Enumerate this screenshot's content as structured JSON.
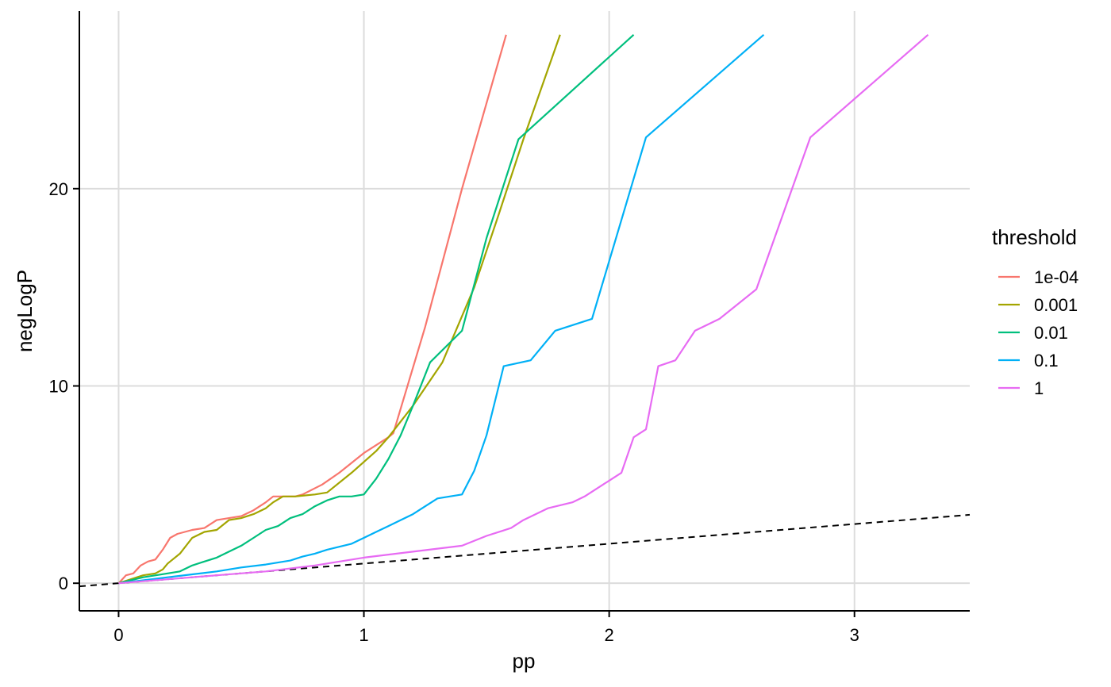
{
  "chart_data": {
    "type": "line",
    "title": "",
    "xlabel": "pp",
    "ylabel": "negLogP",
    "xlim": [
      -0.16,
      3.47
    ],
    "ylim": [
      -1.4,
      29.0
    ],
    "x_ticks": [
      0,
      1,
      2,
      3
    ],
    "y_ticks": [
      0,
      10,
      20
    ],
    "x_tick_labels": [
      "0",
      "1",
      "2",
      "3"
    ],
    "y_tick_labels": [
      "0",
      "10",
      "20"
    ],
    "grid": true,
    "legend": {
      "title": "threshold",
      "position": "right",
      "entries": [
        "1e-04",
        "0.001",
        "0.01",
        "0.1",
        "1"
      ]
    },
    "reference_line": {
      "style": "dashed",
      "color": "#000000",
      "x": [
        -0.16,
        3.47
      ],
      "y": [
        -0.16,
        3.47
      ]
    },
    "series": [
      {
        "name": "1e-04",
        "color": "#F8766D",
        "x": [
          0.0,
          0.03,
          0.06,
          0.09,
          0.12,
          0.15,
          0.18,
          0.21,
          0.24,
          0.27,
          0.3,
          0.35,
          0.4,
          0.45,
          0.5,
          0.55,
          0.6,
          0.63,
          0.67,
          0.72,
          0.75,
          0.83,
          0.9,
          1.0,
          1.1,
          1.12,
          1.25,
          1.4,
          1.58
        ],
        "y": [
          0.0,
          0.4,
          0.5,
          0.9,
          1.1,
          1.2,
          1.7,
          2.3,
          2.5,
          2.6,
          2.7,
          2.8,
          3.2,
          3.3,
          3.4,
          3.7,
          4.1,
          4.4,
          4.4,
          4.4,
          4.5,
          5.0,
          5.6,
          6.6,
          7.4,
          7.6,
          13.0,
          20.0,
          27.8
        ]
      },
      {
        "name": "0.001",
        "color": "#A3A500",
        "x": [
          0.0,
          0.05,
          0.1,
          0.15,
          0.18,
          0.2,
          0.22,
          0.25,
          0.3,
          0.35,
          0.4,
          0.45,
          0.5,
          0.55,
          0.6,
          0.63,
          0.67,
          0.72,
          0.8,
          0.85,
          0.95,
          1.05,
          1.1,
          1.2,
          1.32,
          1.45,
          1.55,
          1.65,
          1.8
        ],
        "y": [
          0.0,
          0.2,
          0.4,
          0.5,
          0.7,
          1.0,
          1.2,
          1.5,
          2.3,
          2.6,
          2.7,
          3.2,
          3.3,
          3.5,
          3.8,
          4.1,
          4.4,
          4.4,
          4.5,
          4.6,
          5.6,
          6.7,
          7.4,
          9.0,
          11.2,
          15.0,
          18.7,
          22.5,
          27.8
        ]
      },
      {
        "name": "0.01",
        "color": "#00BF7D",
        "x": [
          0.0,
          0.1,
          0.2,
          0.25,
          0.3,
          0.35,
          0.4,
          0.45,
          0.5,
          0.55,
          0.6,
          0.65,
          0.7,
          0.75,
          0.8,
          0.85,
          0.9,
          0.95,
          1.0,
          1.05,
          1.1,
          1.15,
          1.2,
          1.27,
          1.4,
          1.5,
          1.63,
          2.1
        ],
        "y": [
          0.0,
          0.3,
          0.5,
          0.6,
          0.9,
          1.1,
          1.3,
          1.6,
          1.9,
          2.3,
          2.7,
          2.9,
          3.3,
          3.5,
          3.9,
          4.2,
          4.4,
          4.4,
          4.5,
          5.3,
          6.3,
          7.5,
          9.0,
          11.2,
          12.8,
          17.5,
          22.5,
          27.8
        ]
      },
      {
        "name": "0.1",
        "color": "#00B0F6",
        "x": [
          0.0,
          0.1,
          0.2,
          0.3,
          0.4,
          0.5,
          0.6,
          0.7,
          0.75,
          0.8,
          0.85,
          0.9,
          0.95,
          1.0,
          1.05,
          1.1,
          1.15,
          1.2,
          1.25,
          1.3,
          1.35,
          1.4,
          1.45,
          1.5,
          1.57,
          1.68,
          1.78,
          1.93,
          2.15,
          2.63
        ],
        "y": [
          0.0,
          0.15,
          0.3,
          0.45,
          0.6,
          0.8,
          0.95,
          1.15,
          1.35,
          1.5,
          1.7,
          1.85,
          2.0,
          2.3,
          2.6,
          2.9,
          3.2,
          3.5,
          3.9,
          4.3,
          4.4,
          4.5,
          5.7,
          7.5,
          11.0,
          11.3,
          12.8,
          13.4,
          22.6,
          27.8
        ]
      },
      {
        "name": "1",
        "color": "#E76BF3",
        "x": [
          0.0,
          0.2,
          0.4,
          0.6,
          0.8,
          1.0,
          1.2,
          1.4,
          1.5,
          1.6,
          1.65,
          1.75,
          1.85,
          1.9,
          1.95,
          2.0,
          2.05,
          2.1,
          2.15,
          2.2,
          2.27,
          2.35,
          2.45,
          2.6,
          2.82,
          3.3
        ],
        "y": [
          0.0,
          0.2,
          0.4,
          0.6,
          0.9,
          1.3,
          1.6,
          1.9,
          2.4,
          2.8,
          3.2,
          3.8,
          4.1,
          4.4,
          4.8,
          5.2,
          5.6,
          7.4,
          7.8,
          11.0,
          11.3,
          12.8,
          13.4,
          14.9,
          22.6,
          27.8
        ]
      }
    ]
  }
}
